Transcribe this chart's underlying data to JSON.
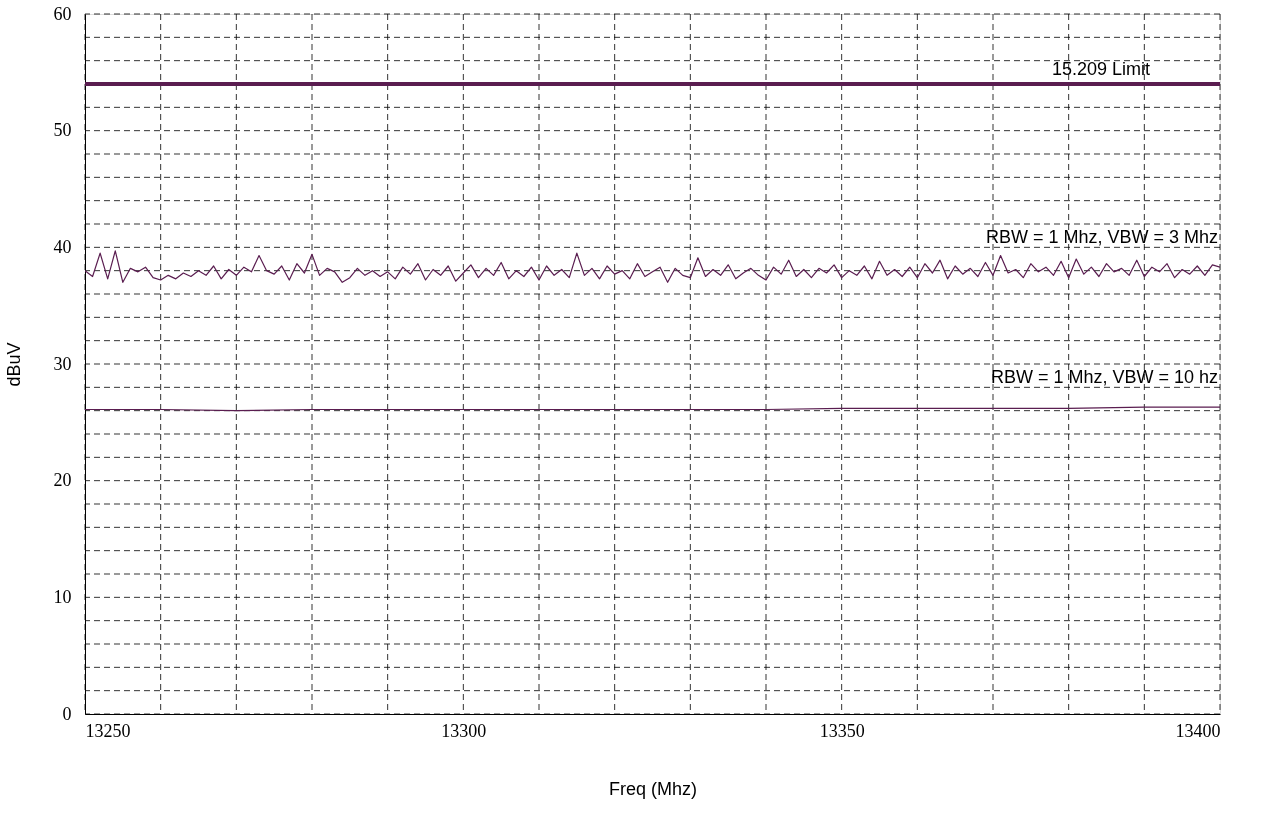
{
  "chart_data": {
    "type": "line",
    "xlabel": "Freq (Mhz)",
    "ylabel": "dBuV",
    "xlim": [
      13250,
      13400
    ],
    "xticks": [
      13250,
      {
        "value": 13260,
        "label": null
      },
      {
        "value": 13270,
        "label": null
      },
      {
        "value": 13280,
        "label": null
      },
      {
        "value": 13290,
        "label": null
      },
      13300,
      {
        "value": 13310,
        "label": null
      },
      {
        "value": 13320,
        "label": null
      },
      {
        "value": 13330,
        "label": null
      },
      {
        "value": 13340,
        "label": null
      },
      13350,
      {
        "value": 13360,
        "label": null
      },
      {
        "value": 13370,
        "label": null
      },
      {
        "value": 13380,
        "label": null
      },
      {
        "value": 13390,
        "label": null
      },
      13400
    ],
    "ylim": [
      0,
      60
    ],
    "yticks": [
      0,
      {
        "value": 2,
        "label": null
      },
      {
        "value": 4,
        "label": null
      },
      {
        "value": 6,
        "label": null
      },
      {
        "value": 8,
        "label": null
      },
      10,
      {
        "value": 12,
        "label": null
      },
      {
        "value": 14,
        "label": null
      },
      {
        "value": 16,
        "label": null
      },
      {
        "value": 18,
        "label": null
      },
      20,
      {
        "value": 22,
        "label": null
      },
      {
        "value": 24,
        "label": null
      },
      {
        "value": 26,
        "label": null
      },
      {
        "value": 28,
        "label": null
      },
      30,
      {
        "value": 32,
        "label": null
      },
      {
        "value": 34,
        "label": null
      },
      {
        "value": 36,
        "label": null
      },
      {
        "value": 38,
        "label": null
      },
      40,
      {
        "value": 42,
        "label": null
      },
      {
        "value": 44,
        "label": null
      },
      {
        "value": 46,
        "label": null
      },
      {
        "value": 48,
        "label": null
      },
      50,
      {
        "value": 52,
        "label": null
      },
      {
        "value": 54,
        "label": null
      },
      {
        "value": 56,
        "label": null
      },
      {
        "value": 58,
        "label": null
      },
      60
    ],
    "grid": true,
    "line_style": "solid",
    "marker": "none",
    "series": [
      {
        "name": "RBW = 1 Mhz, VBW = 3 Mhz",
        "color": "#5a1d50",
        "x": [
          13250,
          13251,
          13252,
          13253,
          13254,
          13255,
          13256,
          13257,
          13258,
          13259,
          13260,
          13261,
          13262,
          13263,
          13264,
          13265,
          13266,
          13267,
          13268,
          13269,
          13270,
          13271,
          13272,
          13273,
          13274,
          13275,
          13276,
          13277,
          13278,
          13279,
          13280,
          13281,
          13282,
          13283,
          13284,
          13285,
          13286,
          13287,
          13288,
          13289,
          13290,
          13291,
          13292,
          13293,
          13294,
          13295,
          13296,
          13297,
          13298,
          13299,
          13300,
          13301,
          13302,
          13303,
          13304,
          13305,
          13306,
          13307,
          13308,
          13309,
          13310,
          13311,
          13312,
          13313,
          13314,
          13315,
          13316,
          13317,
          13318,
          13319,
          13320,
          13321,
          13322,
          13323,
          13324,
          13325,
          13326,
          13327,
          13328,
          13329,
          13330,
          13331,
          13332,
          13333,
          13334,
          13335,
          13336,
          13337,
          13338,
          13339,
          13340,
          13341,
          13342,
          13343,
          13344,
          13345,
          13346,
          13347,
          13348,
          13349,
          13350,
          13351,
          13352,
          13353,
          13354,
          13355,
          13356,
          13357,
          13358,
          13359,
          13360,
          13361,
          13362,
          13363,
          13364,
          13365,
          13366,
          13367,
          13368,
          13369,
          13370,
          13371,
          13372,
          13373,
          13374,
          13375,
          13376,
          13377,
          13378,
          13379,
          13380,
          13381,
          13382,
          13383,
          13384,
          13385,
          13386,
          13387,
          13388,
          13389,
          13390,
          13391,
          13392,
          13393,
          13394,
          13395,
          13396,
          13397,
          13398,
          13399,
          13400
        ],
        "values": [
          38.0,
          37.5,
          39.5,
          37.3,
          39.7,
          37.0,
          38.2,
          37.9,
          38.3,
          37.4,
          37.2,
          37.6,
          37.3,
          37.8,
          37.5,
          38.0,
          37.6,
          38.4,
          37.3,
          38.1,
          37.6,
          38.3,
          37.9,
          39.3,
          38.0,
          37.7,
          38.4,
          37.2,
          38.6,
          37.8,
          39.4,
          37.6,
          38.2,
          37.9,
          37.0,
          37.4,
          38.2,
          37.6,
          38.0,
          37.5,
          37.9,
          37.3,
          38.3,
          37.7,
          38.6,
          37.2,
          38.1,
          37.6,
          38.4,
          37.1,
          37.8,
          38.5,
          37.4,
          38.2,
          37.6,
          38.7,
          37.3,
          38.0,
          37.5,
          38.3,
          37.2,
          38.4,
          37.6,
          38.1,
          37.4,
          39.5,
          37.6,
          38.2,
          37.3,
          38.4,
          37.7,
          38.0,
          37.3,
          38.6,
          37.5,
          37.9,
          38.3,
          37.0,
          38.2,
          37.6,
          37.4,
          39.1,
          37.5,
          38.1,
          37.6,
          38.5,
          37.3,
          37.8,
          38.2,
          37.6,
          37.2,
          38.3,
          37.7,
          38.9,
          37.5,
          38.1,
          37.4,
          38.2,
          37.8,
          38.5,
          37.4,
          38.0,
          37.6,
          38.4,
          37.3,
          38.8,
          37.6,
          38.1,
          37.5,
          38.3,
          37.4,
          38.6,
          37.8,
          38.9,
          37.3,
          38.4,
          37.7,
          38.2,
          37.5,
          38.7,
          37.6,
          39.3,
          37.8,
          38.1,
          37.4,
          38.6,
          37.9,
          38.3,
          37.6,
          38.8,
          37.4,
          39.0,
          37.7,
          38.3,
          37.5,
          38.6,
          37.9,
          38.2,
          37.6,
          38.9,
          37.5,
          38.3,
          37.9,
          38.6,
          37.4,
          38.1,
          37.7,
          38.4,
          37.6,
          38.5,
          38.3
        ]
      },
      {
        "name": "RBW = 1 Mhz, VBW = 10 hz",
        "color": "#5a1d50",
        "x": [
          13250,
          13260,
          13270,
          13280,
          13290,
          13300,
          13310,
          13320,
          13330,
          13340,
          13350,
          13360,
          13370,
          13380,
          13390,
          13400
        ],
        "values": [
          26.1,
          26.1,
          26.0,
          26.1,
          26.1,
          26.1,
          26.1,
          26.1,
          26.1,
          26.1,
          26.2,
          26.2,
          26.2,
          26.2,
          26.3,
          26.3
        ]
      }
    ],
    "ref_lines": [
      {
        "axis": "y",
        "value": 54,
        "label": "15.209 Limit",
        "color": "#5a1d50",
        "line_style": "solid"
      }
    ]
  }
}
